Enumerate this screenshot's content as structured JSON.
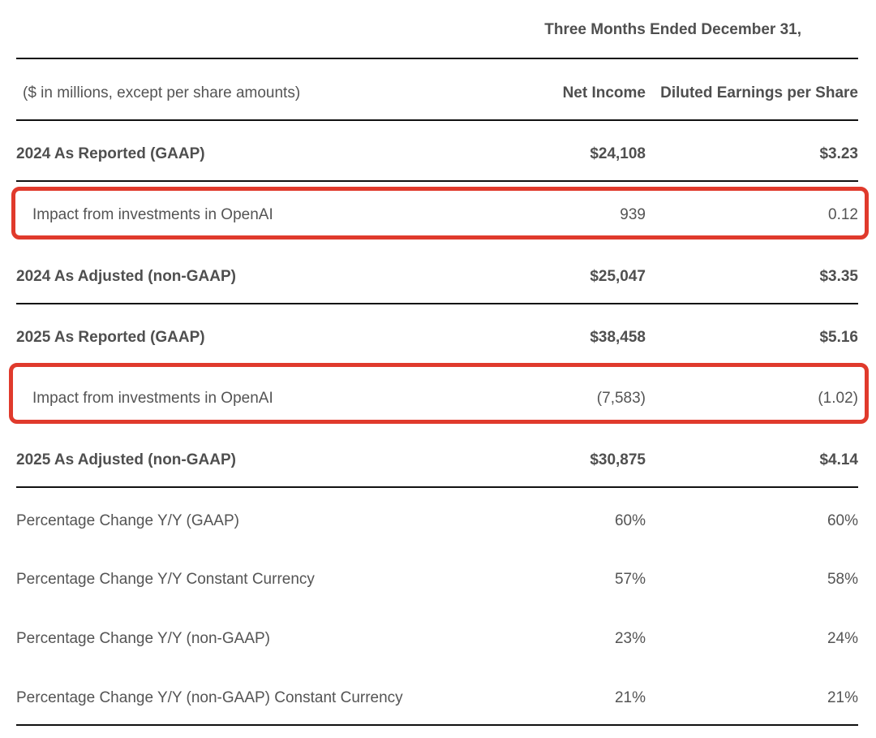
{
  "table": {
    "super_header": "Three Months Ended December 31,",
    "units_label": "($ in millions, except per share amounts)",
    "col_net_income": "Net Income",
    "col_eps": "Diluted Earnings per Share",
    "rows": [
      {
        "label": "2024 As Reported (GAAP)",
        "net_income": "$24,108",
        "eps": "$3.23"
      },
      {
        "label": "Impact from investments in OpenAI",
        "net_income": "939",
        "eps": "0.12"
      },
      {
        "label": "2024 As Adjusted (non-GAAP)",
        "net_income": "$25,047",
        "eps": "$3.35"
      },
      {
        "label": "2025 As Reported (GAAP)",
        "net_income": "$38,458",
        "eps": "$5.16"
      },
      {
        "label": "Impact from investments in OpenAI",
        "net_income": "(7,583)",
        "eps": "(1.02)"
      },
      {
        "label": "2025 As Adjusted (non-GAAP)",
        "net_income": "$30,875",
        "eps": "$4.14"
      },
      {
        "label": "Percentage Change Y/Y (GAAP)",
        "net_income": "60%",
        "eps": "60%"
      },
      {
        "label": "Percentage Change Y/Y Constant Currency",
        "net_income": "57%",
        "eps": "58%"
      },
      {
        "label": "Percentage Change Y/Y (non-GAAP)",
        "net_income": "23%",
        "eps": "24%"
      },
      {
        "label": "Percentage Change Y/Y (non-GAAP) Constant Currency",
        "net_income": "21%",
        "eps": "21%"
      }
    ]
  },
  "colors": {
    "highlight": "#e03a2c",
    "rule": "#111111",
    "text": "#545454"
  }
}
